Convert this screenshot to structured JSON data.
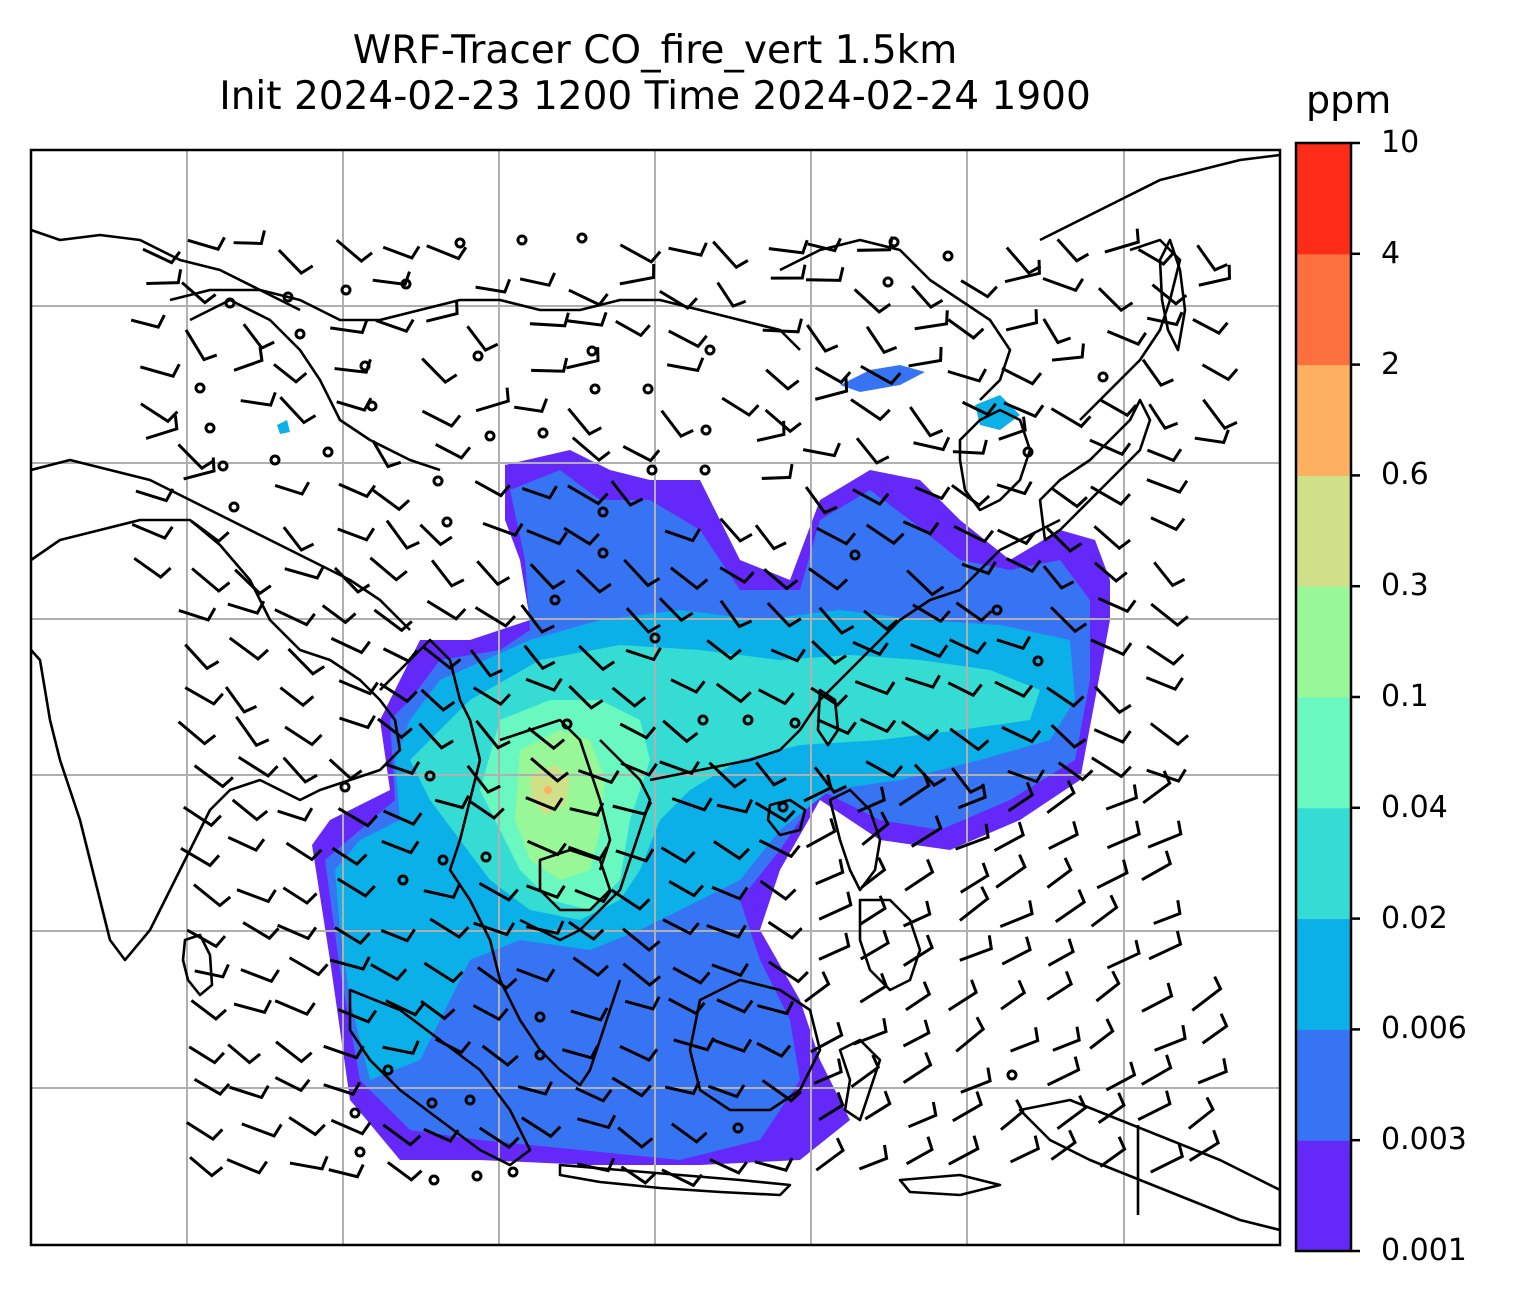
{
  "title": {
    "line1": "WRF-Tracer CO_fire_vert 1.5km",
    "line2": "Init 2024-02-23 1200 Time 2024-02-24 1900"
  },
  "colorbar": {
    "unit": "ppm",
    "ticks": [
      "0.001",
      "0.003",
      "0.006",
      "0.02",
      "0.04",
      "0.1",
      "0.3",
      "0.6",
      "2",
      "4",
      "10"
    ],
    "colors": [
      "#6428f8",
      "#3674f4",
      "#0cb0e8",
      "#34dcd4",
      "#68f8c0",
      "#98f898",
      "#d0e088",
      "#fcb060",
      "#fc7040",
      "#fc2c18"
    ]
  },
  "map": {
    "gridlines": true,
    "wind_barbs": true,
    "coastlines": true,
    "colors": {
      "grid": "#b0b0b0",
      "lines": "#000000"
    }
  }
}
